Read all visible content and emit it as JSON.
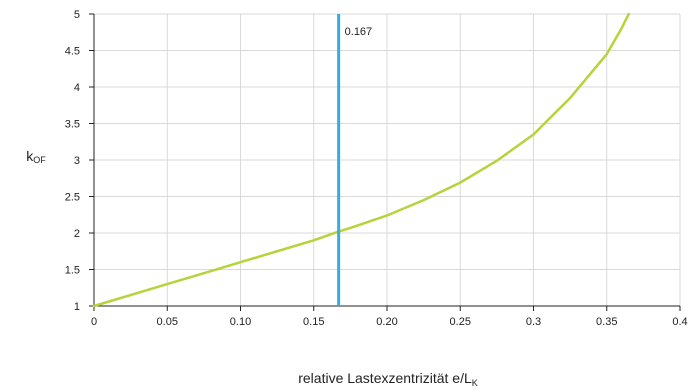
{
  "chart_data": {
    "type": "line",
    "ylabel": {
      "main": "k",
      "sub": "OF"
    },
    "xlabel": {
      "main": "relative Lastexzentrizität e/L",
      "sub": "K"
    },
    "xlim": [
      0,
      0.4
    ],
    "ylim": [
      1,
      5
    ],
    "xticks": [
      "0",
      "0.05",
      "0.10",
      "0.15",
      "0.20",
      "0.25",
      "0.3",
      "0.35",
      "0.4"
    ],
    "yticks": [
      "1",
      "1.5",
      "2",
      "2.5",
      "3",
      "3.5",
      "4",
      "4.5",
      "5"
    ],
    "grid": true,
    "series": [
      {
        "color": "#b5d33b",
        "x": [
          0,
          0.025,
          0.05,
          0.075,
          0.1,
          0.125,
          0.15,
          0.167,
          0.175,
          0.2,
          0.225,
          0.25,
          0.275,
          0.3,
          0.325,
          0.35,
          0.36,
          0.365
        ],
        "y": [
          1.0,
          1.15,
          1.3,
          1.45,
          1.6,
          1.75,
          1.9,
          2.02,
          2.07,
          2.24,
          2.45,
          2.69,
          2.99,
          3.35,
          3.85,
          4.45,
          4.8,
          5.0
        ]
      }
    ],
    "annotations": [
      {
        "type": "vline",
        "x": 0.167,
        "label": "0.167",
        "color": "#3aa9e0"
      }
    ]
  }
}
